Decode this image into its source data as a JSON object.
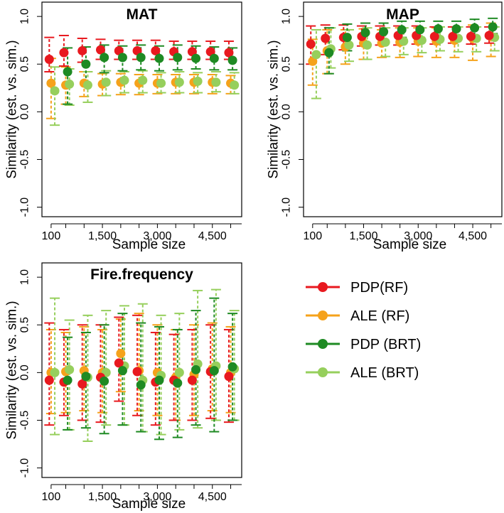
{
  "colors": {
    "pdp_rf": "#e8191f",
    "ale_rf": "#f5a21b",
    "pdp_brt": "#1e8a23",
    "ale_brt": "#96cf5c"
  },
  "legend": [
    {
      "key": "pdp_rf",
      "label": "PDP(RF)"
    },
    {
      "key": "ale_rf",
      "label": "ALE (RF)"
    },
    {
      "key": "pdp_brt",
      "label": "PDP (BRT)"
    },
    {
      "key": "ale_brt",
      "label": "ALE (BRT)"
    }
  ],
  "chart_data": [
    {
      "type": "scatter",
      "title": "MAT",
      "xlabel": "Sample size",
      "ylabel": "Similarity (est. vs. sim.)",
      "ylim": [
        -1.0,
        1.0
      ],
      "yticks": [
        "-1.0",
        "-0.5",
        "0.0",
        "0.5",
        "1.0"
      ],
      "xticks": [
        "100",
        "1,500",
        "3,000",
        "4,500"
      ],
      "x": [
        100,
        500,
        1000,
        1500,
        2000,
        2500,
        3000,
        3500,
        4000,
        4500,
        5000
      ],
      "xlim": [
        -150,
        5300
      ],
      "series": [
        {
          "key": "pdp_rf",
          "values": [
            0.55,
            0.62,
            0.64,
            0.65,
            0.64,
            0.64,
            0.64,
            0.63,
            0.63,
            0.63,
            0.62
          ],
          "lower": [
            0.42,
            0.48,
            0.52,
            0.55,
            0.55,
            0.55,
            0.55,
            0.55,
            0.55,
            0.55,
            0.55
          ],
          "upper": [
            0.78,
            0.8,
            0.77,
            0.76,
            0.75,
            0.75,
            0.75,
            0.74,
            0.74,
            0.74,
            0.74
          ]
        },
        {
          "key": "ale_rf",
          "values": [
            0.3,
            0.28,
            0.3,
            0.29,
            0.31,
            0.3,
            0.3,
            0.31,
            0.31,
            0.31,
            0.3
          ],
          "lower": [
            -0.07,
            0.08,
            0.16,
            0.17,
            0.18,
            0.18,
            0.19,
            0.19,
            0.19,
            0.19,
            0.19
          ],
          "upper": [
            0.56,
            0.47,
            0.42,
            0.4,
            0.4,
            0.39,
            0.39,
            0.39,
            0.39,
            0.39,
            0.38
          ]
        },
        {
          "key": "pdp_brt",
          "values": [
            null,
            0.42,
            0.5,
            0.57,
            0.57,
            0.57,
            0.56,
            0.57,
            0.56,
            0.56,
            0.54
          ],
          "lower": [
            null,
            0.08,
            0.3,
            0.41,
            0.43,
            0.44,
            0.43,
            0.44,
            0.45,
            0.44,
            0.44
          ],
          "upper": [
            null,
            0.67,
            0.68,
            0.7,
            0.69,
            0.7,
            0.69,
            0.7,
            0.69,
            0.68,
            0.67
          ]
        },
        {
          "key": "ale_brt",
          "values": [
            0.22,
            0.29,
            0.28,
            0.31,
            0.33,
            0.33,
            0.3,
            0.31,
            0.32,
            0.31,
            0.28
          ],
          "lower": [
            -0.14,
            0.07,
            0.1,
            0.17,
            0.2,
            0.2,
            0.2,
            0.2,
            0.2,
            0.21,
            0.19
          ],
          "upper": [
            0.47,
            0.45,
            0.42,
            0.43,
            0.42,
            0.43,
            0.41,
            0.42,
            0.41,
            0.42,
            0.41
          ]
        }
      ]
    },
    {
      "type": "scatter",
      "title": "MAP",
      "xlabel": "Sample size",
      "ylabel": "Similarity (est. vs. sim.)",
      "ylim": [
        -1.0,
        1.0
      ],
      "yticks": [
        "-1.0",
        "-0.5",
        "0.0",
        "0.5",
        "1.0"
      ],
      "xticks": [
        "100",
        "1,500",
        "3,000",
        "4,500"
      ],
      "x": [
        100,
        500,
        1000,
        1500,
        2000,
        2500,
        3000,
        3500,
        4000,
        4500,
        5000
      ],
      "xlim": [
        -150,
        5300
      ],
      "series": [
        {
          "key": "pdp_rf",
          "values": [
            0.71,
            0.77,
            0.78,
            0.79,
            0.79,
            0.8,
            0.8,
            0.79,
            0.79,
            0.79,
            0.8
          ],
          "lower": [
            0.5,
            0.6,
            0.65,
            0.69,
            0.7,
            0.7,
            0.71,
            0.71,
            0.72,
            0.71,
            0.72
          ],
          "upper": [
            0.9,
            0.91,
            0.91,
            0.9,
            0.9,
            0.9,
            0.9,
            0.89,
            0.89,
            0.89,
            0.89
          ]
        },
        {
          "key": "ale_rf",
          "values": [
            0.53,
            0.64,
            0.68,
            0.72,
            0.72,
            0.73,
            0.74,
            0.74,
            0.75,
            0.77,
            0.79
          ],
          "lower": [
            0.28,
            0.4,
            0.5,
            0.55,
            0.57,
            0.57,
            0.58,
            0.57,
            0.57,
            0.54,
            0.58
          ],
          "upper": [
            0.76,
            0.86,
            0.86,
            0.87,
            0.86,
            0.88,
            0.88,
            0.88,
            0.89,
            0.91,
            0.93
          ]
        },
        {
          "key": "pdp_brt",
          "values": [
            null,
            0.62,
            0.78,
            0.83,
            0.84,
            0.86,
            0.86,
            0.87,
            0.87,
            0.88,
            0.89
          ],
          "lower": [
            null,
            0.4,
            0.64,
            0.72,
            0.75,
            0.78,
            0.78,
            0.79,
            0.79,
            0.8,
            0.82
          ],
          "upper": [
            null,
            0.88,
            0.92,
            0.93,
            0.93,
            0.95,
            0.95,
            0.95,
            0.95,
            0.97,
            0.98
          ]
        },
        {
          "key": "ale_brt",
          "values": [
            0.6,
            0.66,
            0.7,
            0.7,
            0.73,
            0.74,
            0.75,
            0.76,
            0.77,
            0.77,
            0.78
          ],
          "lower": [
            0.14,
            0.46,
            0.53,
            0.55,
            0.58,
            0.6,
            0.62,
            0.64,
            0.63,
            0.63,
            0.64
          ],
          "upper": [
            0.86,
            0.88,
            0.86,
            0.88,
            0.88,
            0.88,
            0.88,
            0.89,
            0.89,
            0.89,
            0.89
          ]
        }
      ]
    },
    {
      "type": "scatter",
      "title": "Fire.frequency",
      "xlabel": "Sample size",
      "ylabel": "Similarity (est. vs. sim.)",
      "ylim": [
        -1.0,
        1.0
      ],
      "yticks": [
        "-1.0",
        "-0.5",
        "0.0",
        "0.5",
        "1.0"
      ],
      "xticks": [
        "100",
        "1,500",
        "3,000",
        "4,500"
      ],
      "x": [
        100,
        500,
        1000,
        1500,
        2000,
        2500,
        3000,
        3500,
        4000,
        4500,
        5000
      ],
      "xlim": [
        -150,
        5300
      ],
      "series": [
        {
          "key": "pdp_rf",
          "values": [
            -0.08,
            -0.1,
            -0.12,
            -0.05,
            0.1,
            0.01,
            -0.1,
            -0.08,
            -0.08,
            0.01,
            -0.04
          ],
          "lower": [
            -0.55,
            -0.45,
            -0.5,
            -0.52,
            -0.3,
            -0.45,
            -0.55,
            -0.5,
            -0.5,
            -0.48,
            -0.52
          ],
          "upper": [
            0.52,
            0.45,
            0.5,
            0.5,
            0.58,
            0.6,
            0.42,
            0.4,
            0.45,
            0.5,
            0.45
          ]
        },
        {
          "key": "ale_rf",
          "values": [
            0.0,
            0.01,
            0.02,
            0.0,
            0.2,
            0.02,
            0.0,
            -0.05,
            -0.02,
            0.04,
            0.0
          ],
          "lower": [
            -0.43,
            -0.42,
            -0.4,
            -0.42,
            -0.2,
            -0.4,
            -0.45,
            -0.5,
            -0.45,
            -0.4,
            -0.42
          ],
          "upper": [
            0.45,
            0.42,
            0.48,
            0.45,
            0.56,
            0.62,
            0.5,
            0.45,
            0.5,
            0.52,
            0.48
          ]
        },
        {
          "key": "pdp_brt",
          "values": [
            null,
            -0.08,
            -0.04,
            -0.09,
            0.02,
            -0.13,
            -0.08,
            -0.11,
            0.03,
            0.02,
            0.06
          ],
          "lower": [
            null,
            -0.6,
            -0.58,
            -0.64,
            -0.55,
            -0.62,
            -0.7,
            -0.68,
            -0.55,
            -0.62,
            -0.5
          ],
          "upper": [
            null,
            0.37,
            0.42,
            0.5,
            0.62,
            0.52,
            0.48,
            0.45,
            0.65,
            0.78,
            0.62
          ]
        },
        {
          "key": "ale_brt",
          "values": [
            0.0,
            0.03,
            -0.05,
            0.0,
            0.07,
            -0.08,
            -0.03,
            0.0,
            0.09,
            0.07,
            0.04
          ],
          "lower": [
            -0.65,
            -0.6,
            -0.72,
            -0.55,
            -0.55,
            -0.62,
            -0.65,
            -0.6,
            -0.58,
            -0.5,
            -0.5
          ],
          "upper": [
            0.78,
            0.55,
            0.6,
            0.65,
            0.7,
            0.72,
            0.6,
            0.62,
            0.86,
            0.87,
            0.65
          ]
        }
      ]
    }
  ]
}
